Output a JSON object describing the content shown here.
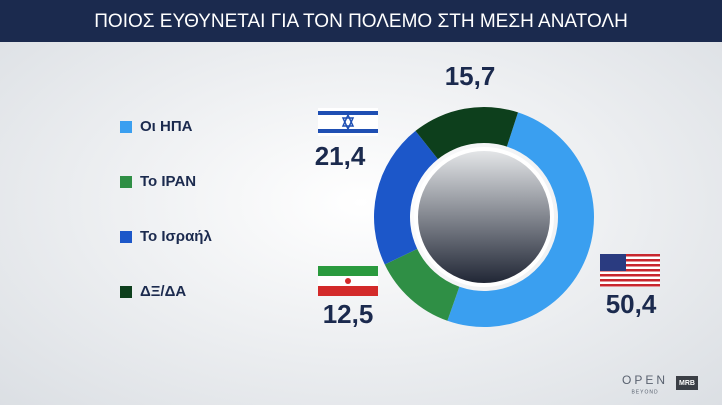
{
  "chart_data": {
    "type": "donut",
    "title": "ΠΟΙΟΣ ΕΥΘΥΝΕΤΑΙ ΓΙΑ ΤΟΝ ΠΟΛΕΜΟ ΣΤΗ ΜΕΣΗ ΑΝΑΤΟΛΗ",
    "categories": [
      "Οι ΗΠΑ",
      "Το ΙΡΑΝ",
      "Το Ισραήλ",
      "ΔΞ/ΔΑ"
    ],
    "values": [
      50.4,
      12.5,
      21.4,
      15.7
    ],
    "value_labels": [
      "50,4",
      "12,5",
      "21,4",
      "15,7"
    ],
    "colors": [
      "#3a9ff0",
      "#2f8f45",
      "#1c57c9",
      "#0d3f1c"
    ],
    "legend": "left"
  },
  "branding": {
    "channel": "OPEN",
    "channel_tagline": "BEYOND",
    "pollster": "MRB"
  }
}
